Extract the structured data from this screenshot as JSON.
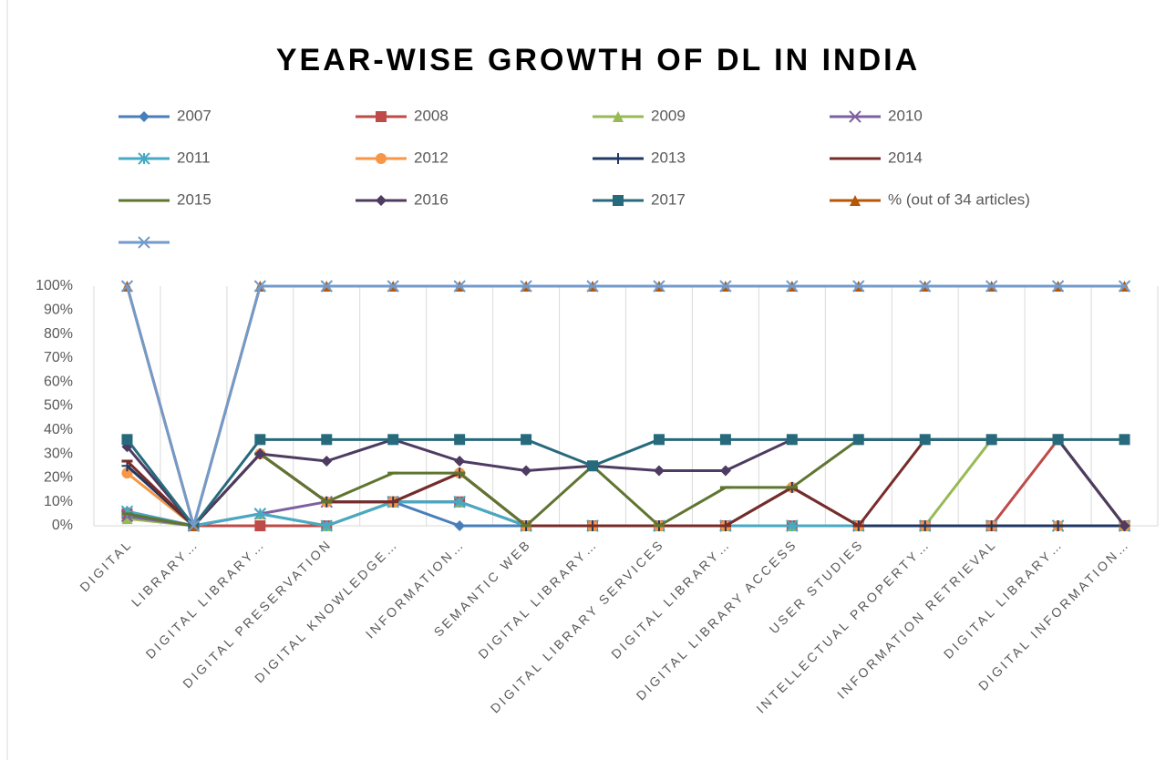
{
  "chart_data": {
    "type": "line",
    "title": "YEAR-WISE GROWTH OF DL IN INDIA",
    "categories": [
      "DIGITAL",
      "LIBRARY…",
      "DIGITAL LIBRARY…",
      "DIGITAL PRESERVATION",
      "DIGITAL KNOWLEDGE…",
      "INFORMATION…",
      "SEMANTIC WEB",
      "DIGITAL LIBRARY…",
      "DIGITAL LIBRARY SERVICES",
      "DIGITAL LIBRARY…",
      "DIGITAL LIBRARY ACCESS",
      "USER STUDIES",
      "INTELLECTUAL PROPERTY…",
      "INFORMATION RETRIEVAL",
      "DIGITAL LIBRARY…",
      "DIGITAL INFORMATION…"
    ],
    "series": [
      {
        "name": "2007",
        "color": "#4a7ebb",
        "marker": "diamond",
        "values": [
          6,
          0,
          0,
          0,
          10,
          0,
          0,
          0,
          0,
          0,
          0,
          0,
          0,
          0,
          0,
          0
        ]
      },
      {
        "name": "2008",
        "color": "#be4b48",
        "marker": "square",
        "values": [
          5,
          0,
          0,
          0,
          10,
          10,
          0,
          0,
          0,
          0,
          0,
          0,
          0,
          0,
          36,
          0
        ]
      },
      {
        "name": "2009",
        "color": "#98b954",
        "marker": "triangle",
        "values": [
          3,
          0,
          5,
          0,
          10,
          10,
          0,
          0,
          0,
          0,
          0,
          0,
          0,
          36,
          36,
          0
        ]
      },
      {
        "name": "2010",
        "color": "#7d60a0",
        "marker": "x",
        "values": [
          4,
          0,
          5,
          10,
          10,
          10,
          0,
          0,
          0,
          0,
          0,
          0,
          0,
          0,
          0,
          0
        ]
      },
      {
        "name": "2011",
        "color": "#46aac5",
        "marker": "star",
        "values": [
          6,
          0,
          5,
          0,
          10,
          10,
          0,
          0,
          0,
          0,
          0,
          0,
          0,
          0,
          0,
          0
        ]
      },
      {
        "name": "2012",
        "color": "#f79646",
        "marker": "circle",
        "values": [
          22,
          0,
          30,
          10,
          10,
          22,
          0,
          0,
          0,
          0,
          16,
          0,
          0,
          0,
          0,
          0
        ]
      },
      {
        "name": "2013",
        "color": "#203864",
        "marker": "plus",
        "values": [
          25,
          0,
          30,
          10,
          10,
          22,
          0,
          0,
          0,
          0,
          16,
          0,
          0,
          0,
          0,
          0
        ]
      },
      {
        "name": "2014",
        "color": "#772c2a",
        "marker": "dash",
        "values": [
          27,
          0,
          30,
          10,
          10,
          22,
          0,
          0,
          0,
          0,
          16,
          0,
          36,
          36,
          36,
          0
        ]
      },
      {
        "name": "2015",
        "color": "#5f7530",
        "marker": "dash",
        "values": [
          5,
          0,
          30,
          10,
          22,
          22,
          0,
          25,
          0,
          16,
          16,
          36,
          36,
          36,
          36,
          0
        ]
      },
      {
        "name": "2016",
        "color": "#4d3b62",
        "marker": "diamond",
        "values": [
          33,
          0,
          30,
          27,
          36,
          27,
          23,
          25,
          23,
          23,
          36,
          36,
          36,
          36,
          36,
          0
        ]
      },
      {
        "name": "2017",
        "color": "#276a7c",
        "marker": "square",
        "values": [
          36,
          0,
          36,
          36,
          36,
          36,
          36,
          25,
          36,
          36,
          36,
          36,
          36,
          36,
          36,
          36
        ]
      },
      {
        "name": "% (out of 34 articles)",
        "color": "#b65708",
        "marker": "triangle",
        "values": [
          100,
          0,
          100,
          100,
          100,
          100,
          100,
          100,
          100,
          100,
          100,
          100,
          100,
          100,
          100,
          100
        ]
      },
      {
        "name": null,
        "color": "#729aca",
        "marker": "x",
        "values": [
          100,
          0,
          100,
          100,
          100,
          100,
          100,
          100,
          100,
          100,
          100,
          100,
          100,
          100,
          100,
          100
        ]
      }
    ],
    "ylim": [
      0,
      100
    ],
    "yticks": [
      {
        "value": 0,
        "label": "0%"
      },
      {
        "value": 10,
        "label": "10%"
      },
      {
        "value": 20,
        "label": "20%"
      },
      {
        "value": 30,
        "label": "30%"
      },
      {
        "value": 40,
        "label": "40%"
      },
      {
        "value": 50,
        "label": "50%"
      },
      {
        "value": 60,
        "label": "60%"
      },
      {
        "value": 70,
        "label": "70%"
      },
      {
        "value": 80,
        "label": "80%"
      },
      {
        "value": 90,
        "label": "90%"
      },
      {
        "value": 100,
        "label": "100%"
      }
    ],
    "grid": true,
    "legend": "top"
  }
}
